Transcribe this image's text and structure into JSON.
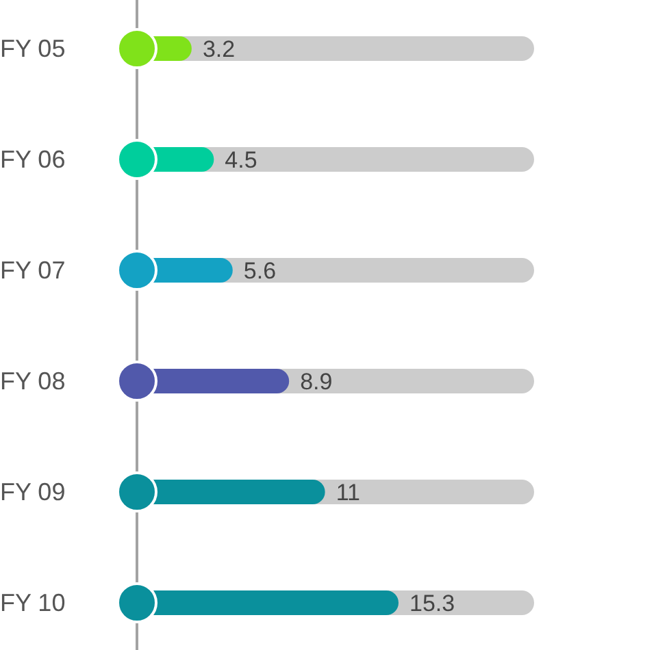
{
  "chart_data": {
    "type": "bar",
    "orientation": "horizontal",
    "categories": [
      "FY 05",
      "FY 06",
      "FY 07",
      "FY 08",
      "FY 09",
      "FY 10"
    ],
    "values": [
      3.2,
      4.5,
      5.6,
      8.9,
      11,
      15.3
    ],
    "colors": [
      "#80e21a",
      "#00ce9c",
      "#14a2c4",
      "#5159ab",
      "#0a909c",
      "#0a909c"
    ],
    "data_labels": true
  }
}
